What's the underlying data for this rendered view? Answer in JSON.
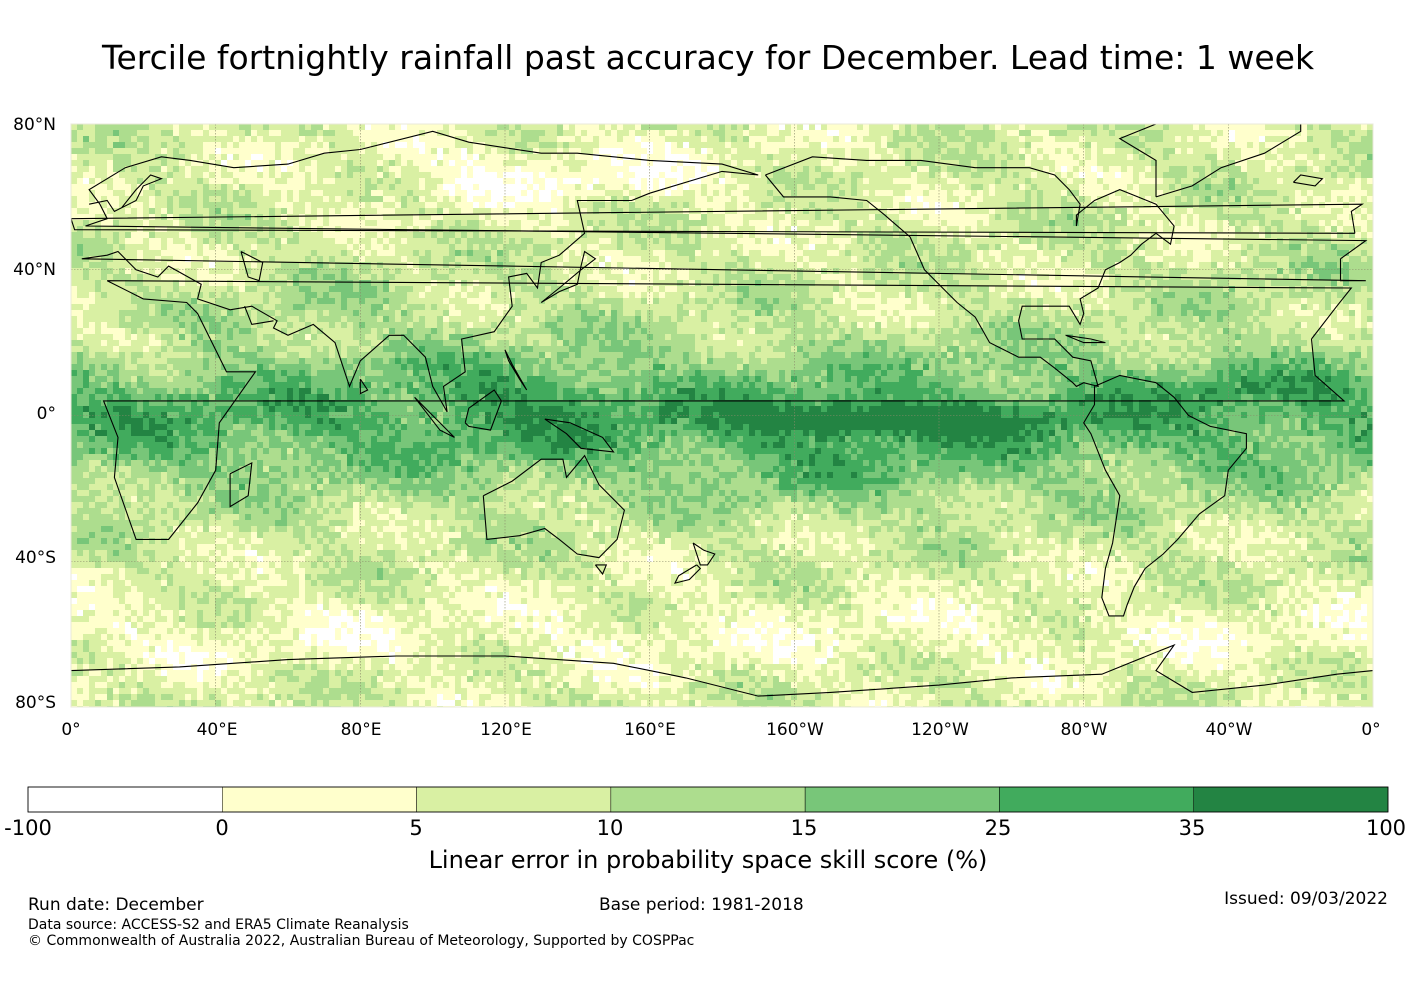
{
  "title": "Tercile fortnightly rainfall past accuracy for December. Lead time: 1 week",
  "map": {
    "lat_labels": [
      "80°N",
      "40°N",
      "0°",
      "40°S",
      "80°S"
    ],
    "lon_labels": [
      "0°",
      "40°E",
      "80°E",
      "120°E",
      "160°E",
      "160°W",
      "120°W",
      "80°W",
      "40°W",
      "0°"
    ],
    "lat_values": [
      80,
      40,
      0,
      -40,
      -80
    ],
    "lon_values": [
      0,
      40,
      80,
      120,
      160,
      200,
      240,
      280,
      320,
      360
    ]
  },
  "colorbar": {
    "ticks": [
      "-100",
      "0",
      "5",
      "10",
      "15",
      "25",
      "35",
      "100"
    ],
    "colors": [
      "#ffffff",
      "#ffffcc",
      "#d9f0a3",
      "#addd8e",
      "#78c679",
      "#41ab5d",
      "#238443"
    ],
    "title": "Linear error in probability space skill score (%)"
  },
  "footer": {
    "run_date": "Run date: December",
    "base_period": "Base period: 1981-2018",
    "issued": "Issued: 09/03/2022",
    "data_source": "Data source: ACCESS-S2 and ERA5 Climate Reanalysis",
    "copyright": "© Commonwealth of Australia 2022, Australian Bureau of Meteorology, Supported by COSPPac"
  }
}
